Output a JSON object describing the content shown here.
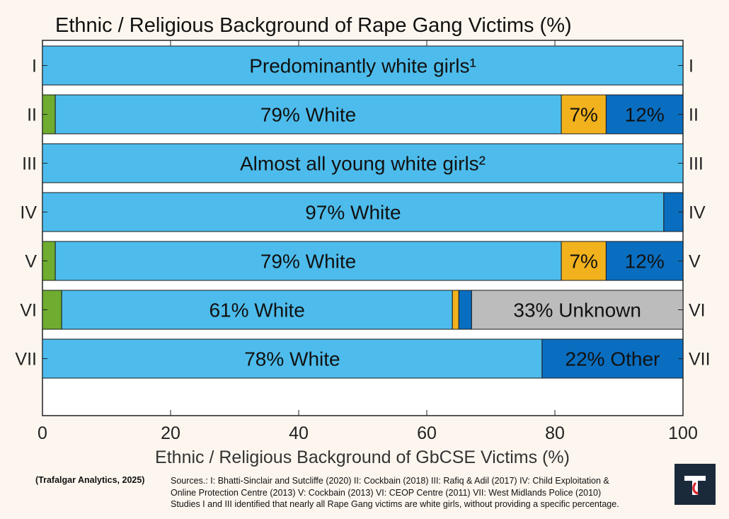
{
  "colors": {
    "background": "#fdf6ee",
    "green": "#6fac2f",
    "lightblue": "#4dbcec",
    "orange": "#f2b21d",
    "darkblue": "#0a6ec0",
    "grey": "#bcbcbc",
    "logo_bg": "#1b2a3a",
    "logo_mark": "#ffffff",
    "logo_accent": "#e0232b"
  },
  "icons": {
    "logo": "trafalgar-t-logo"
  },
  "chart_data": {
    "type": "bar",
    "orientation": "horizontal-stacked",
    "title": "Ethnic / Religious Background of Rape Gang Victims (%)",
    "xlabel": "Ethnic / Religious Background of GbCSE Victims (%)",
    "xlim": [
      0,
      100
    ],
    "xticks": [
      0,
      20,
      40,
      60,
      80,
      100
    ],
    "grid": false,
    "legend": "none",
    "categories": [
      "I",
      "II",
      "III",
      "IV",
      "V",
      "VI",
      "VII"
    ],
    "rows": [
      {
        "label": "I",
        "segments": [
          {
            "value": 100,
            "color": "lightblue",
            "text": "Predominantly white girls¹"
          }
        ]
      },
      {
        "label": "II",
        "segments": [
          {
            "value": 2,
            "color": "green",
            "text": ""
          },
          {
            "value": 79,
            "color": "lightblue",
            "text": "79% White"
          },
          {
            "value": 7,
            "color": "orange",
            "text": "7%"
          },
          {
            "value": 12,
            "color": "darkblue",
            "text": "12%"
          }
        ]
      },
      {
        "label": "III",
        "segments": [
          {
            "value": 100,
            "color": "lightblue",
            "text": "Almost all young white girls²"
          }
        ]
      },
      {
        "label": "IV",
        "segments": [
          {
            "value": 97,
            "color": "lightblue",
            "text": "97% White"
          },
          {
            "value": 3,
            "color": "darkblue",
            "text": ""
          }
        ]
      },
      {
        "label": "V",
        "segments": [
          {
            "value": 2,
            "color": "green",
            "text": ""
          },
          {
            "value": 79,
            "color": "lightblue",
            "text": "79% White"
          },
          {
            "value": 7,
            "color": "orange",
            "text": "7%"
          },
          {
            "value": 12,
            "color": "darkblue",
            "text": "12%"
          }
        ]
      },
      {
        "label": "VI",
        "segments": [
          {
            "value": 3,
            "color": "green",
            "text": ""
          },
          {
            "value": 61,
            "color": "lightblue",
            "text": "61% White"
          },
          {
            "value": 1,
            "color": "orange",
            "text": ""
          },
          {
            "value": 2,
            "color": "darkblue",
            "text": ""
          },
          {
            "value": 33,
            "color": "grey",
            "text": "33% Unknown"
          }
        ]
      },
      {
        "label": "VII",
        "segments": [
          {
            "value": 78,
            "color": "lightblue",
            "text": "78% White"
          },
          {
            "value": 22,
            "color": "darkblue",
            "text": "22% Other"
          }
        ]
      }
    ]
  },
  "footer": {
    "credit": "(Trafalgar Analytics, 2025)",
    "sources": [
      "Sources.:  I: Bhatti-Sinclair and Sutcliffe (2020)  II: Cockbain (2018)  III: Rafiq & Adil (2017)  IV: Child Exploitation &",
      "Online Protection Centre (2013)  V: Cockbain (2013)  VI: CEOP Centre (2011)  VII: West Midlands Police (2010)",
      "Studies I and III identified that nearly all Rape Gang victims are white girls, without providing a specific percentage."
    ]
  }
}
